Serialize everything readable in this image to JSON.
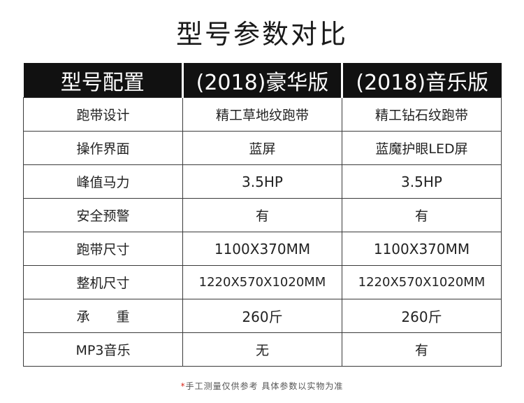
{
  "title": "型号参数对比",
  "table": {
    "headers": [
      "型号配置",
      "(2018)豪华版",
      "(2018)音乐版"
    ],
    "rows": [
      {
        "label": "跑带设计",
        "v1": "精工草地纹跑带",
        "v2": "精工钻石纹跑带",
        "highlight": false
      },
      {
        "label": "操作界面",
        "v1": "蓝屏",
        "v2": "蓝魔护眼LED屏",
        "highlight": false
      },
      {
        "label": "峰值马力",
        "v1": "3.5HP",
        "v2": "3.5HP",
        "highlight": true
      },
      {
        "label": "安全预警",
        "v1": "有",
        "v2": "有",
        "highlight": false
      },
      {
        "label": "跑带尺寸",
        "v1": "1100X370MM",
        "v2": "1100X370MM",
        "highlight": false
      },
      {
        "label": "整机尺寸",
        "v1": "1220X570X1020MM",
        "v2": "1220X570X1020MM",
        "highlight": false
      },
      {
        "label": "承　　重",
        "v1": "260斤",
        "v2": "260斤",
        "highlight": true
      },
      {
        "label": "MP3音乐",
        "v1": "无",
        "v2": "有",
        "highlight": false
      }
    ]
  },
  "footnote": {
    "star": "*",
    "text": "手工测量仅供参考 具体参数以实物为准"
  },
  "colors": {
    "header_bg": "#111111",
    "highlight": "#d9281c",
    "border": "#3a3a3a"
  }
}
